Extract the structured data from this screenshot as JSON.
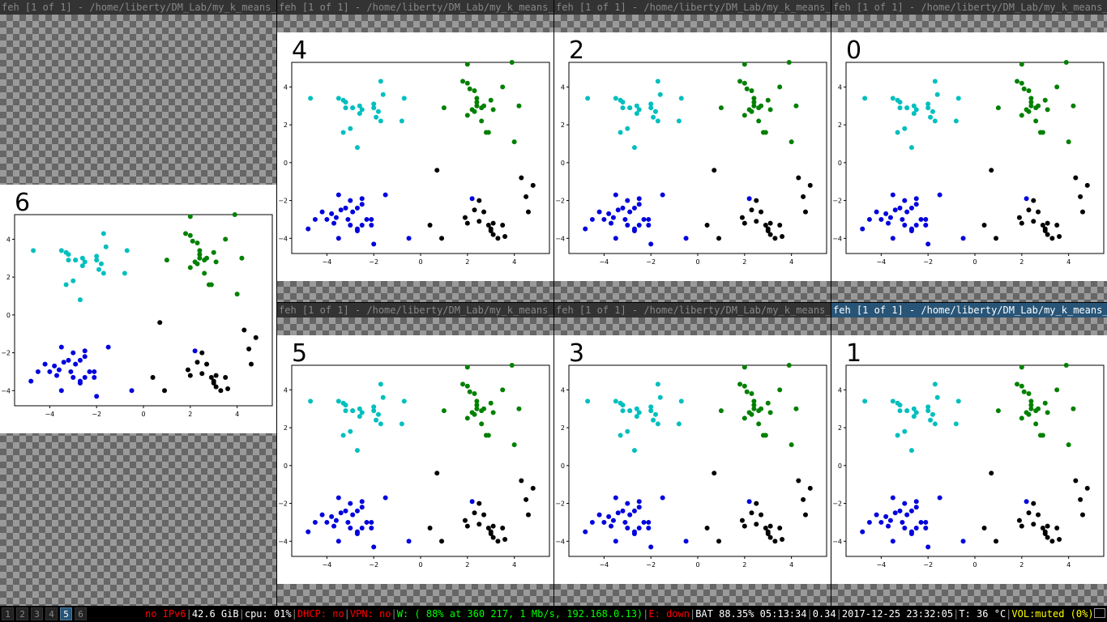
{
  "windows": [
    {
      "title": "feh [1 of 1] - /home/liberty/DM_Lab/my_k_means_…",
      "image_label": "6",
      "focused": false
    },
    {
      "title": "feh [1 of 1] - /home/liberty/DM_Lab/my_k_means_…",
      "image_label": "4",
      "focused": false
    },
    {
      "title": "feh [1 of 1] - /home/liberty/DM_Lab/my_k_means_…",
      "image_label": "2",
      "focused": false
    },
    {
      "title": "feh [1 of 1] - /home/liberty/DM_Lab/my_k_means_…",
      "image_label": "0",
      "focused": false
    },
    {
      "title": "feh [1 of 1] - /home/liberty/DM_Lab/my_k_means_…",
      "image_label": "5",
      "focused": false
    },
    {
      "title": "feh [1 of 1] - /home/liberty/DM_Lab/my_k_means_…",
      "image_label": "3",
      "focused": false
    },
    {
      "title": "feh [1 of 1] - /home/liberty/DM_Lab/my_k_means_…",
      "image_label": "1",
      "focused": true
    }
  ],
  "workspaces": [
    {
      "label": "1",
      "active": false
    },
    {
      "label": "2",
      "active": false
    },
    {
      "label": "3",
      "active": false
    },
    {
      "label": "4",
      "active": false
    },
    {
      "label": "5",
      "active": true
    },
    {
      "label": "6",
      "active": false
    }
  ],
  "status": {
    "ipv6": {
      "text": "no IPv6",
      "color": "#ff0000"
    },
    "disk": {
      "text": "42.6 GiB",
      "color": "#ffffff"
    },
    "cpu": {
      "text": "cpu: 01%",
      "color": "#ffffff"
    },
    "dhcp": {
      "text": "DHCP: no",
      "color": "#ff0000"
    },
    "vpn": {
      "text": "VPN: no",
      "color": "#ff0000"
    },
    "wifi": {
      "text": "W: ( 88% at 360 217, 1 Mb/s, 192.168.0.13)",
      "color": "#00ff00"
    },
    "ethernet": {
      "text": "E: down",
      "color": "#ff0000"
    },
    "battery": {
      "text": "BAT 88.35% 05:13:34",
      "color": "#ffffff"
    },
    "load": {
      "text": "0.34",
      "color": "#ffffff"
    },
    "datetime": {
      "text": "2017-12-25 23:32:05",
      "color": "#ffffff"
    },
    "temp": {
      "text": "T: 36 °C",
      "color": "#ffffff"
    },
    "volume": {
      "text": "VOL:muted (0%)",
      "color": "#ffff00"
    }
  },
  "chart_data": {
    "type": "scatter",
    "xlim": [
      -5.5,
      5.5
    ],
    "ylim": [
      -4.8,
      5.3
    ],
    "xticks": [
      -4,
      -2,
      0,
      2,
      4
    ],
    "yticks": [
      -4,
      -2,
      0,
      2,
      4
    ],
    "colors": {
      "blue": "#0000dd",
      "cyan": "#00bfbf",
      "green": "#008000",
      "black": "#000000"
    },
    "points": [
      [
        -3.5,
        3.4
      ],
      [
        -3.3,
        3.3
      ],
      [
        -3.2,
        3.2
      ],
      [
        -2.9,
        2.9
      ],
      [
        -2.6,
        3.0
      ],
      [
        -2.5,
        2.8
      ],
      [
        -2.0,
        3.1
      ],
      [
        -1.8,
        2.7
      ],
      [
        -2.0,
        2.9
      ],
      [
        -3.0,
        1.8
      ],
      [
        -3.3,
        1.6
      ],
      [
        -2.7,
        0.8
      ],
      [
        -4.7,
        3.4
      ],
      [
        -1.7,
        4.3
      ],
      [
        -0.7,
        3.4
      ],
      [
        -1.6,
        3.6
      ],
      [
        -1.9,
        2.4
      ],
      [
        -0.8,
        2.2
      ],
      [
        -1.7,
        2.2
      ],
      [
        -2.9,
        2.9
      ],
      [
        -3.2,
        2.9
      ],
      [
        -2.6,
        2.6
      ],
      [
        2.0,
        4.2
      ],
      [
        2.1,
        3.9
      ],
      [
        2.3,
        3.8
      ],
      [
        1.8,
        4.3
      ],
      [
        2.4,
        3.4
      ],
      [
        2.4,
        3.2
      ],
      [
        2.4,
        3.0
      ],
      [
        2.6,
        2.9
      ],
      [
        2.7,
        3.0
      ],
      [
        3.0,
        3.3
      ],
      [
        3.1,
        2.8
      ],
      [
        3.5,
        4.0
      ],
      [
        3.9,
        5.3
      ],
      [
        4.2,
        3.0
      ],
      [
        2.0,
        5.2
      ],
      [
        2.3,
        2.7
      ],
      [
        2.2,
        2.8
      ],
      [
        1.0,
        2.9
      ],
      [
        2.0,
        2.5
      ],
      [
        2.6,
        2.2
      ],
      [
        2.8,
        1.6
      ],
      [
        2.9,
        1.6
      ],
      [
        4.0,
        1.1
      ],
      [
        -4.8,
        -3.5
      ],
      [
        -4.5,
        -3.0
      ],
      [
        -4.2,
        -2.6
      ],
      [
        -3.8,
        -2.7
      ],
      [
        -3.6,
        -2.9
      ],
      [
        -3.4,
        -2.5
      ],
      [
        -3.2,
        -2.4
      ],
      [
        -3.0,
        -2.0
      ],
      [
        -2.9,
        -2.6
      ],
      [
        -2.7,
        -2.4
      ],
      [
        -2.5,
        -2.2
      ],
      [
        -2.3,
        -3.0
      ],
      [
        -2.1,
        -3.3
      ],
      [
        -3.7,
        -3.2
      ],
      [
        -3.0,
        -3.3
      ],
      [
        -2.7,
        -3.5
      ],
      [
        -2.5,
        -3.3
      ],
      [
        -3.5,
        -1.7
      ],
      [
        -2.5,
        -1.9
      ],
      [
        -1.5,
        -1.7
      ],
      [
        -2.1,
        -3.0
      ],
      [
        -4.0,
        -3.0
      ],
      [
        -3.5,
        -4.0
      ],
      [
        -2.0,
        -4.3
      ],
      [
        -0.5,
        -4.0
      ],
      [
        -2.7,
        -3.6
      ],
      [
        -3.1,
        -3.0
      ],
      [
        2.2,
        -1.9
      ],
      [
        2.5,
        -2.0
      ],
      [
        2.3,
        -2.5
      ],
      [
        2.0,
        -3.2
      ],
      [
        2.5,
        -3.1
      ],
      [
        2.7,
        -2.6
      ],
      [
        2.9,
        -3.3
      ],
      [
        3.0,
        -3.6
      ],
      [
        3.1,
        -3.8
      ],
      [
        3.3,
        -4.0
      ],
      [
        3.5,
        -3.3
      ],
      [
        3.1,
        -3.2
      ],
      [
        3.6,
        -3.9
      ],
      [
        4.3,
        -0.8
      ],
      [
        4.5,
        -1.8
      ],
      [
        4.6,
        -2.6
      ],
      [
        4.8,
        -1.2
      ],
      [
        0.7,
        -0.4
      ],
      [
        0.9,
        -4.0
      ],
      [
        0.4,
        -3.3
      ],
      [
        1.9,
        -2.9
      ],
      [
        3.0,
        -3.5
      ]
    ],
    "assignments": {
      "6": "cbgk",
      "4": "cbgk",
      "5": "cbgk",
      "3": "cbgk",
      "2": "cbgk",
      "0": "cbgk",
      "1": "cbgk"
    }
  }
}
